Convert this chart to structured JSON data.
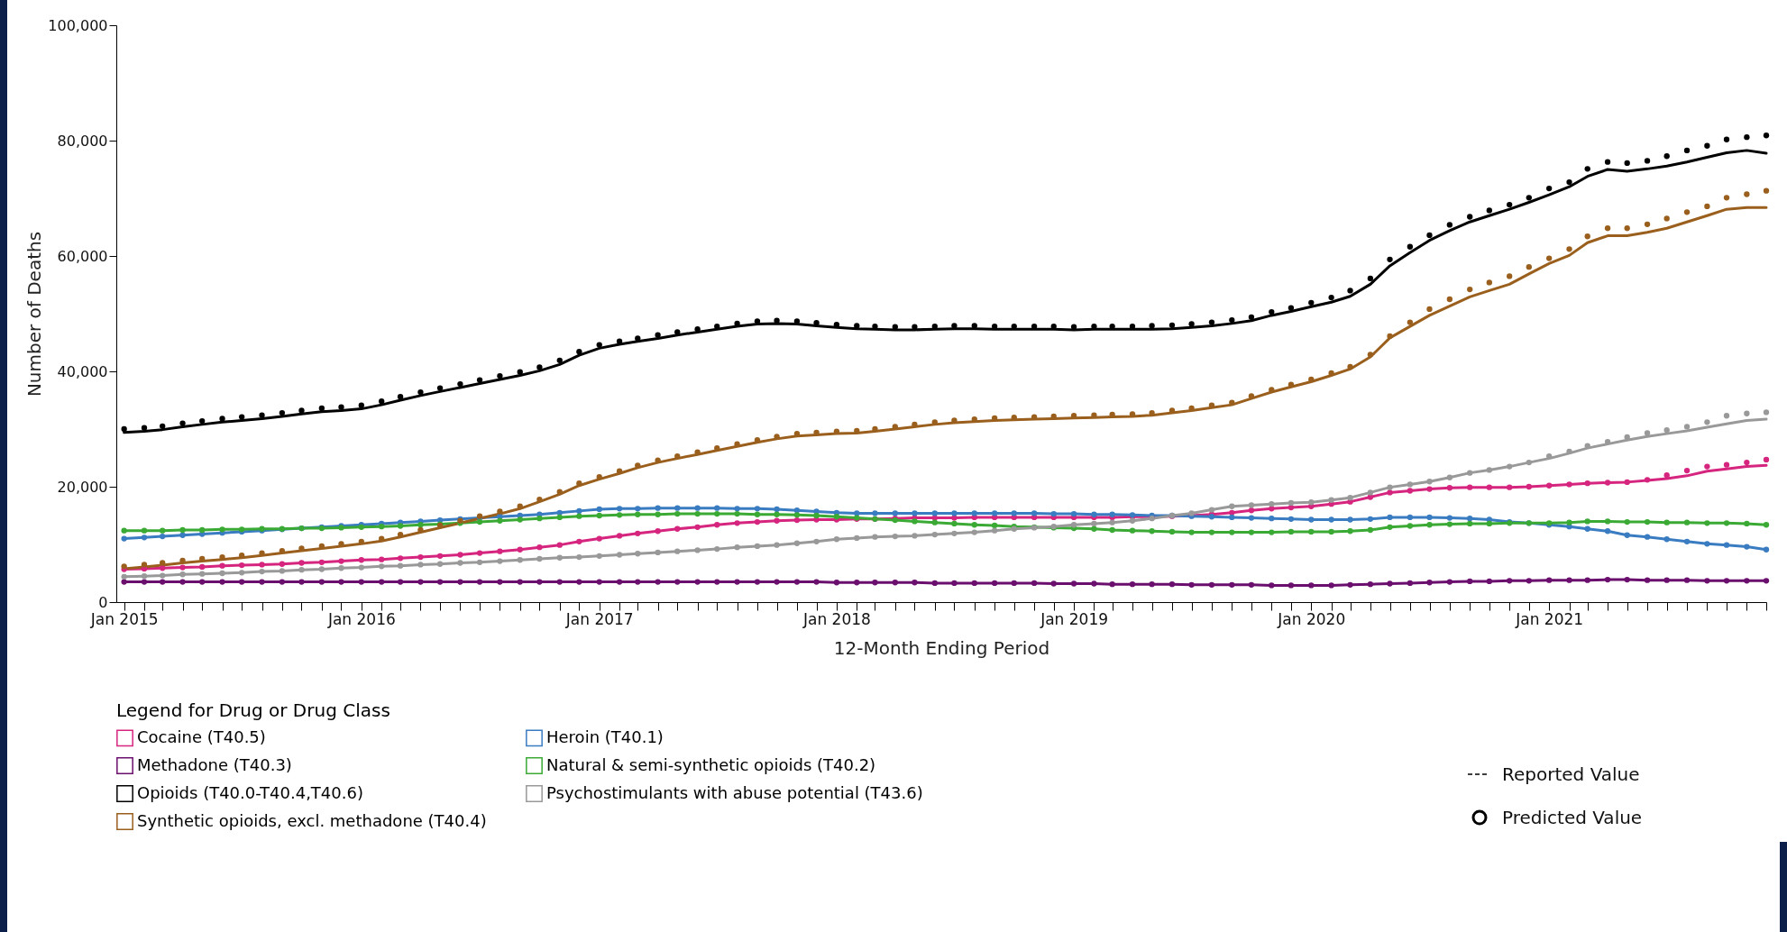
{
  "chart_data": {
    "type": "line",
    "line_style": "solid",
    "xlabel": "12-Month Ending Period",
    "ylabel": "Number of Deaths",
    "legend_title": "Legend for Drug or Drug Class",
    "legend": "bottom",
    "annotations": [
      "Reported Value",
      "Predicted Value"
    ],
    "x": [
      "2015-01",
      "2015-02",
      "2015-03",
      "2015-04",
      "2015-05",
      "2015-06",
      "2015-07",
      "2015-08",
      "2015-09",
      "2015-10",
      "2015-11",
      "2015-12",
      "2016-01",
      "2016-02",
      "2016-03",
      "2016-04",
      "2016-05",
      "2016-06",
      "2016-07",
      "2016-08",
      "2016-09",
      "2016-10",
      "2016-11",
      "2016-12",
      "2017-01",
      "2017-02",
      "2017-03",
      "2017-04",
      "2017-05",
      "2017-06",
      "2017-07",
      "2017-08",
      "2017-09",
      "2017-10",
      "2017-11",
      "2017-12",
      "2018-01",
      "2018-02",
      "2018-03",
      "2018-04",
      "2018-05",
      "2018-06",
      "2018-07",
      "2018-08",
      "2018-09",
      "2018-10",
      "2018-11",
      "2018-12",
      "2019-01",
      "2019-02",
      "2019-03",
      "2019-04",
      "2019-05",
      "2019-06",
      "2019-07",
      "2019-08",
      "2019-09",
      "2019-10",
      "2019-11",
      "2019-12",
      "2020-01",
      "2020-02",
      "2020-03",
      "2020-04",
      "2020-05",
      "2020-06",
      "2020-07",
      "2020-08",
      "2020-09",
      "2020-10",
      "2020-11",
      "2020-12",
      "2021-01",
      "2021-02",
      "2021-03",
      "2021-04",
      "2021-05",
      "2021-06",
      "2021-07",
      "2021-08",
      "2021-09",
      "2021-10",
      "2021-11",
      "2021-12"
    ],
    "xlim": [
      "2014-12-20",
      "2021-12"
    ],
    "xticks": [
      {
        "value": "2015-01",
        "label": "Jan 2015"
      },
      {
        "value": "2015-02",
        "label": null
      },
      {
        "value": "2015-03",
        "label": null
      },
      {
        "value": "2015-04",
        "label": null
      },
      {
        "value": "2015-05",
        "label": null
      },
      {
        "value": "2015-06",
        "label": null
      },
      {
        "value": "2015-07",
        "label": null
      },
      {
        "value": "2015-08",
        "label": null
      },
      {
        "value": "2015-09",
        "label": null
      },
      {
        "value": "2015-10",
        "label": null
      },
      {
        "value": "2015-11",
        "label": null
      },
      {
        "value": "2015-12",
        "label": null
      },
      {
        "value": "2016-01",
        "label": "Jan 2016"
      },
      {
        "value": "2016-02",
        "label": null
      },
      {
        "value": "2016-03",
        "label": null
      },
      {
        "value": "2016-04",
        "label": null
      },
      {
        "value": "2016-05",
        "label": null
      },
      {
        "value": "2016-06",
        "label": null
      },
      {
        "value": "2016-07",
        "label": null
      },
      {
        "value": "2016-08",
        "label": null
      },
      {
        "value": "2016-09",
        "label": null
      },
      {
        "value": "2016-10",
        "label": null
      },
      {
        "value": "2016-11",
        "label": null
      },
      {
        "value": "2016-12",
        "label": null
      },
      {
        "value": "2017-01",
        "label": "Jan 2017"
      },
      {
        "value": "2017-02",
        "label": null
      },
      {
        "value": "2017-03",
        "label": null
      },
      {
        "value": "2017-04",
        "label": null
      },
      {
        "value": "2017-05",
        "label": null
      },
      {
        "value": "2017-06",
        "label": null
      },
      {
        "value": "2017-07",
        "label": null
      },
      {
        "value": "2017-08",
        "label": null
      },
      {
        "value": "2017-09",
        "label": null
      },
      {
        "value": "2017-10",
        "label": null
      },
      {
        "value": "2017-11",
        "label": null
      },
      {
        "value": "2017-12",
        "label": null
      },
      {
        "value": "2018-01",
        "label": "Jan 2018"
      },
      {
        "value": "2018-02",
        "label": null
      },
      {
        "value": "2018-03",
        "label": null
      },
      {
        "value": "2018-04",
        "label": null
      },
      {
        "value": "2018-05",
        "label": null
      },
      {
        "value": "2018-06",
        "label": null
      },
      {
        "value": "2018-07",
        "label": null
      },
      {
        "value": "2018-08",
        "label": null
      },
      {
        "value": "2018-09",
        "label": null
      },
      {
        "value": "2018-10",
        "label": null
      },
      {
        "value": "2018-11",
        "label": null
      },
      {
        "value": "2018-12",
        "label": null
      },
      {
        "value": "2019-01",
        "label": "Jan 2019"
      },
      {
        "value": "2019-02",
        "label": null
      },
      {
        "value": "2019-03",
        "label": null
      },
      {
        "value": "2019-04",
        "label": null
      },
      {
        "value": "2019-05",
        "label": null
      },
      {
        "value": "2019-06",
        "label": null
      },
      {
        "value": "2019-07",
        "label": null
      },
      {
        "value": "2019-08",
        "label": null
      },
      {
        "value": "2019-09",
        "label": null
      },
      {
        "value": "2019-10",
        "label": null
      },
      {
        "value": "2019-11",
        "label": null
      },
      {
        "value": "2019-12",
        "label": null
      },
      {
        "value": "2020-01",
        "label": "Jan 2020"
      },
      {
        "value": "2020-02",
        "label": null
      },
      {
        "value": "2020-03",
        "label": null
      },
      {
        "value": "2020-04",
        "label": null
      },
      {
        "value": "2020-05",
        "label": null
      },
      {
        "value": "2020-06",
        "label": null
      },
      {
        "value": "2020-07",
        "label": null
      },
      {
        "value": "2020-08",
        "label": null
      },
      {
        "value": "2020-09",
        "label": null
      },
      {
        "value": "2020-10",
        "label": null
      },
      {
        "value": "2020-11",
        "label": null
      },
      {
        "value": "2020-12",
        "label": null
      },
      {
        "value": "2021-01",
        "label": "Jan 2021"
      },
      {
        "value": "2021-02",
        "label": null
      },
      {
        "value": "2021-03",
        "label": null
      },
      {
        "value": "2021-04",
        "label": null
      },
      {
        "value": "2021-05",
        "label": null
      },
      {
        "value": "2021-06",
        "label": null
      },
      {
        "value": "2021-07",
        "label": null
      },
      {
        "value": "2021-08",
        "label": null
      },
      {
        "value": "2021-09",
        "label": null
      },
      {
        "value": "2021-10",
        "label": null
      },
      {
        "value": "2021-11",
        "label": null
      },
      {
        "value": "2021-12",
        "label": null
      }
    ],
    "ylim": [
      0,
      100000
    ],
    "yticks": [
      0,
      {
        "value": 20000,
        "label": "20,000"
      },
      {
        "value": 40000,
        "label": "40,000"
      },
      {
        "value": 60000,
        "label": "60,000"
      },
      {
        "value": 80000,
        "label": "80,000"
      },
      {
        "value": 100000,
        "label": "100,000"
      }
    ],
    "series": [
      {
        "name": "Cocaine (T40.5)",
        "color": "#d6257e",
        "values": [
          5700,
          5800,
          5900,
          6000,
          6100,
          6300,
          6400,
          6500,
          6600,
          6800,
          6900,
          7100,
          7300,
          7400,
          7600,
          7800,
          8000,
          8200,
          8500,
          8800,
          9100,
          9500,
          9900,
          10500,
          11000,
          11500,
          11900,
          12300,
          12700,
          13000,
          13400,
          13700,
          13900,
          14100,
          14200,
          14300,
          14300,
          14400,
          14400,
          14500,
          14600,
          14600,
          14600,
          14700,
          14700,
          14700,
          14700,
          14700,
          14700,
          14700,
          14700,
          14800,
          14800,
          14900,
          15000,
          15200,
          15500,
          15900,
          16200,
          16400,
          16600,
          17000,
          17400,
          18200,
          19000,
          19300,
          19600,
          19800,
          19900,
          19900,
          19900,
          20000,
          20200,
          20400,
          20600,
          20700,
          20800,
          21100,
          21400,
          21900,
          22700,
          23100,
          23500,
          23700
        ]
      },
      {
        "name": "Heroin (T40.1)",
        "color": "#3a7cc1",
        "values": [
          11000,
          11200,
          11400,
          11600,
          11800,
          12000,
          12200,
          12400,
          12600,
          12800,
          13000,
          13200,
          13400,
          13600,
          13800,
          14000,
          14200,
          14400,
          14600,
          14800,
          15000,
          15200,
          15500,
          15800,
          16100,
          16200,
          16200,
          16300,
          16300,
          16300,
          16300,
          16200,
          16200,
          16100,
          15900,
          15700,
          15500,
          15400,
          15400,
          15400,
          15400,
          15400,
          15400,
          15400,
          15400,
          15400,
          15400,
          15300,
          15300,
          15200,
          15200,
          15100,
          15000,
          15000,
          14900,
          14800,
          14700,
          14600,
          14500,
          14400,
          14300,
          14300,
          14300,
          14400,
          14700,
          14700,
          14700,
          14600,
          14500,
          14300,
          13900,
          13700,
          13400,
          13100,
          12700,
          12300,
          11600,
          11300,
          10900,
          10500,
          10100,
          9900,
          9600,
          9100
        ]
      },
      {
        "name": "Methadone (T40.3)",
        "color": "#6b0f6e",
        "values": [
          3500,
          3500,
          3500,
          3500,
          3500,
          3500,
          3500,
          3500,
          3500,
          3500,
          3500,
          3500,
          3500,
          3500,
          3500,
          3500,
          3500,
          3500,
          3500,
          3500,
          3500,
          3500,
          3500,
          3500,
          3500,
          3500,
          3500,
          3500,
          3500,
          3500,
          3500,
          3500,
          3500,
          3500,
          3500,
          3500,
          3400,
          3400,
          3400,
          3400,
          3400,
          3300,
          3300,
          3300,
          3300,
          3300,
          3300,
          3200,
          3200,
          3200,
          3100,
          3100,
          3100,
          3100,
          3000,
          3000,
          3000,
          3000,
          2900,
          2900,
          2900,
          2900,
          3000,
          3100,
          3200,
          3300,
          3400,
          3500,
          3600,
          3600,
          3700,
          3700,
          3800,
          3800,
          3800,
          3900,
          3900,
          3800,
          3800,
          3800,
          3700,
          3700,
          3700,
          3700
        ]
      },
      {
        "name": "Natural & semi-synthetic opioids (T40.2)",
        "color": "#3aaa35",
        "values": [
          12400,
          12400,
          12400,
          12500,
          12500,
          12600,
          12600,
          12700,
          12700,
          12800,
          12800,
          12900,
          13000,
          13100,
          13200,
          13400,
          13500,
          13700,
          13900,
          14100,
          14300,
          14500,
          14700,
          14900,
          15000,
          15100,
          15200,
          15200,
          15300,
          15300,
          15300,
          15300,
          15200,
          15200,
          15100,
          15000,
          14800,
          14600,
          14400,
          14200,
          14000,
          13800,
          13600,
          13400,
          13300,
          13100,
          13000,
          12900,
          12800,
          12700,
          12500,
          12400,
          12300,
          12200,
          12100,
          12100,
          12100,
          12100,
          12100,
          12200,
          12200,
          12200,
          12300,
          12500,
          13000,
          13200,
          13400,
          13500,
          13600,
          13600,
          13700,
          13700,
          13700,
          13800,
          14000,
          14000,
          13900,
          13900,
          13800,
          13800,
          13700,
          13700,
          13600,
          13400
        ]
      },
      {
        "name": "Opioids (T40.0-T40.4,T40.6)",
        "color": "#000000",
        "values": [
          29400,
          29600,
          29900,
          30400,
          30800,
          31200,
          31500,
          31800,
          32200,
          32600,
          33000,
          33200,
          33500,
          34200,
          35000,
          35800,
          36500,
          37200,
          37900,
          38600,
          39300,
          40100,
          41200,
          42800,
          44000,
          44700,
          45200,
          45700,
          46300,
          46800,
          47300,
          47800,
          48200,
          48300,
          48200,
          47900,
          47600,
          47400,
          47300,
          47200,
          47200,
          47300,
          47400,
          47400,
          47300,
          47300,
          47300,
          47300,
          47200,
          47300,
          47300,
          47300,
          47300,
          47400,
          47600,
          47900,
          48300,
          48800,
          49700,
          50400,
          51200,
          52000,
          53000,
          55100,
          58300,
          60600,
          62700,
          64400,
          65900,
          67000,
          68100,
          69300,
          70600,
          72000,
          73800,
          75000,
          74700,
          75100,
          75600,
          76300,
          77100,
          77900,
          78300,
          77800
        ]
      },
      {
        "name": "Psychostimulants with abuse potential (T43.6)",
        "color": "#999999",
        "values": [
          4400,
          4500,
          4600,
          4800,
          4900,
          5000,
          5100,
          5300,
          5400,
          5600,
          5700,
          5900,
          6000,
          6200,
          6300,
          6500,
          6600,
          6800,
          6900,
          7100,
          7300,
          7500,
          7700,
          7800,
          8000,
          8200,
          8400,
          8600,
          8800,
          9000,
          9200,
          9500,
          9700,
          9900,
          10200,
          10500,
          10900,
          11100,
          11300,
          11400,
          11500,
          11700,
          11900,
          12100,
          12400,
          12700,
          12900,
          13100,
          13400,
          13600,
          13800,
          14100,
          14500,
          15000,
          15400,
          16000,
          16600,
          16800,
          17000,
          17200,
          17300,
          17700,
          18100,
          19000,
          19900,
          20400,
          20900,
          21600,
          22400,
          22900,
          23500,
          24200,
          24900,
          25800,
          26700,
          27400,
          28100,
          28700,
          29200,
          29700,
          30300,
          30900,
          31500,
          31700
        ]
      },
      {
        "name": "Synthetic opioids, excl. methadone (T40.4)",
        "color": "#9a5f1d",
        "values": [
          5800,
          6100,
          6400,
          6800,
          7100,
          7400,
          7700,
          8100,
          8500,
          8900,
          9300,
          9700,
          10100,
          10600,
          11300,
          12100,
          12900,
          13700,
          14500,
          15300,
          16200,
          17400,
          18700,
          20200,
          21300,
          22300,
          23300,
          24200,
          24900,
          25600,
          26300,
          27000,
          27700,
          28300,
          28800,
          29000,
          29200,
          29300,
          29600,
          30000,
          30400,
          30800,
          31100,
          31300,
          31500,
          31600,
          31700,
          31800,
          31900,
          32000,
          32100,
          32200,
          32400,
          32800,
          33200,
          33700,
          34200,
          35300,
          36400,
          37300,
          38200,
          39300,
          40400,
          42500,
          45800,
          47800,
          49700,
          51300,
          52900,
          54000,
          55100,
          56900,
          58700,
          60100,
          62300,
          63500,
          63500,
          64100,
          64800,
          65900,
          67000,
          68100,
          68400,
          68400
        ]
      },
      {
        "type": "scatter",
        "marker": "circle",
        "color": "#d6257e",
        "values": [
          5700,
          5800,
          5900,
          6000,
          6100,
          6300,
          6400,
          6500,
          6600,
          6800,
          6900,
          7100,
          7300,
          7400,
          7600,
          7800,
          8000,
          8200,
          8500,
          8800,
          9100,
          9500,
          9900,
          10500,
          11000,
          11500,
          11900,
          12300,
          12700,
          13000,
          13400,
          13700,
          13900,
          14100,
          14200,
          14300,
          14300,
          14400,
          14400,
          14500,
          14600,
          14600,
          14600,
          14700,
          14700,
          14700,
          14700,
          14700,
          14700,
          14700,
          14700,
          14800,
          14800,
          14900,
          15000,
          15200,
          15500,
          15900,
          16200,
          16400,
          16600,
          17000,
          17400,
          18200,
          19000,
          19300,
          19600,
          19800,
          19900,
          19900,
          19900,
          20000,
          20200,
          20400,
          20600,
          20700,
          20800,
          21200,
          22000,
          22800,
          23500,
          23800,
          24200,
          24700
        ]
      },
      {
        "type": "scatter",
        "marker": "circle",
        "color": "#3a7cc1",
        "values": [
          11000,
          11200,
          11400,
          11600,
          11800,
          12000,
          12200,
          12400,
          12600,
          12800,
          13000,
          13200,
          13400,
          13600,
          13800,
          14000,
          14200,
          14400,
          14600,
          14800,
          15000,
          15200,
          15500,
          15800,
          16100,
          16200,
          16200,
          16300,
          16300,
          16300,
          16300,
          16200,
          16200,
          16100,
          15900,
          15700,
          15500,
          15400,
          15400,
          15400,
          15400,
          15400,
          15400,
          15400,
          15400,
          15400,
          15400,
          15300,
          15300,
          15200,
          15200,
          15100,
          15000,
          15000,
          14900,
          14800,
          14700,
          14600,
          14500,
          14400,
          14300,
          14300,
          14300,
          14400,
          14700,
          14700,
          14700,
          14600,
          14500,
          14300,
          13900,
          13700,
          13400,
          13100,
          12700,
          12300,
          11600,
          11300,
          10900,
          10500,
          10100,
          9900,
          9600,
          9100
        ]
      },
      {
        "type": "scatter",
        "marker": "circle",
        "color": "#6b0f6e",
        "values": [
          3500,
          3500,
          3500,
          3500,
          3500,
          3500,
          3500,
          3500,
          3500,
          3500,
          3500,
          3500,
          3500,
          3500,
          3500,
          3500,
          3500,
          3500,
          3500,
          3500,
          3500,
          3500,
          3500,
          3500,
          3500,
          3500,
          3500,
          3500,
          3500,
          3500,
          3500,
          3500,
          3500,
          3500,
          3500,
          3500,
          3400,
          3400,
          3400,
          3400,
          3400,
          3300,
          3300,
          3300,
          3300,
          3300,
          3300,
          3200,
          3200,
          3200,
          3100,
          3100,
          3100,
          3100,
          3000,
          3000,
          3000,
          3000,
          2900,
          2900,
          2900,
          2900,
          3000,
          3100,
          3200,
          3300,
          3400,
          3500,
          3600,
          3600,
          3700,
          3700,
          3800,
          3800,
          3800,
          3900,
          3900,
          3800,
          3800,
          3800,
          3700,
          3700,
          3700,
          3700
        ]
      },
      {
        "type": "scatter",
        "marker": "circle",
        "color": "#3aaa35",
        "values": [
          12400,
          12400,
          12400,
          12500,
          12500,
          12600,
          12600,
          12700,
          12700,
          12800,
          12800,
          12900,
          13000,
          13100,
          13200,
          13400,
          13500,
          13700,
          13900,
          14100,
          14300,
          14500,
          14700,
          14900,
          15000,
          15100,
          15200,
          15200,
          15300,
          15300,
          15300,
          15300,
          15200,
          15200,
          15100,
          15000,
          14800,
          14600,
          14400,
          14200,
          14000,
          13800,
          13600,
          13400,
          13300,
          13100,
          13000,
          12900,
          12800,
          12700,
          12500,
          12400,
          12300,
          12200,
          12100,
          12100,
          12100,
          12100,
          12100,
          12200,
          12200,
          12200,
          12300,
          12500,
          13000,
          13200,
          13400,
          13500,
          13600,
          13600,
          13700,
          13700,
          13700,
          13800,
          14000,
          14000,
          13900,
          13900,
          13800,
          13800,
          13700,
          13700,
          13600,
          13400
        ]
      },
      {
        "type": "scatter",
        "marker": "circle",
        "color": "#000000",
        "values": [
          30000,
          30200,
          30500,
          31000,
          31400,
          31800,
          32100,
          32400,
          32800,
          33200,
          33600,
          33800,
          34100,
          34800,
          35600,
          36400,
          37100,
          37800,
          38500,
          39200,
          39900,
          40700,
          41900,
          43400,
          44600,
          45200,
          45700,
          46300,
          46800,
          47300,
          47800,
          48300,
          48700,
          48800,
          48700,
          48400,
          48100,
          47900,
          47800,
          47700,
          47700,
          47800,
          47900,
          47900,
          47800,
          47800,
          47800,
          47800,
          47700,
          47800,
          47800,
          47800,
          47900,
          48000,
          48200,
          48500,
          48900,
          49400,
          50300,
          51000,
          51900,
          52800,
          54000,
          56100,
          59400,
          61600,
          63600,
          65400,
          66800,
          67900,
          68900,
          70100,
          71700,
          72800,
          75100,
          76300,
          76100,
          76500,
          77300,
          78300,
          79100,
          80200,
          80600,
          80900
        ]
      },
      {
        "type": "scatter",
        "marker": "circle",
        "color": "#999999",
        "values": [
          4400,
          4500,
          4600,
          4800,
          4900,
          5000,
          5100,
          5300,
          5400,
          5600,
          5700,
          5900,
          6000,
          6200,
          6300,
          6500,
          6600,
          6800,
          6900,
          7100,
          7300,
          7500,
          7700,
          7800,
          8000,
          8200,
          8400,
          8600,
          8800,
          9000,
          9200,
          9500,
          9700,
          9900,
          10200,
          10500,
          10900,
          11100,
          11300,
          11400,
          11500,
          11700,
          11900,
          12100,
          12400,
          12700,
          12900,
          13100,
          13400,
          13600,
          13800,
          14100,
          14500,
          15000,
          15400,
          16000,
          16600,
          16800,
          17000,
          17200,
          17300,
          17700,
          18100,
          19000,
          19900,
          20400,
          20900,
          21600,
          22400,
          22900,
          23500,
          24200,
          25300,
          26100,
          27100,
          27800,
          28600,
          29300,
          29800,
          30400,
          31200,
          32300,
          32700,
          32900
        ]
      },
      {
        "type": "scatter",
        "marker": "circle",
        "color": "#9a5f1d",
        "values": [
          6200,
          6500,
          6800,
          7200,
          7500,
          7800,
          8100,
          8500,
          8900,
          9300,
          9700,
          10100,
          10500,
          11000,
          11700,
          12500,
          13300,
          14100,
          14900,
          15700,
          16600,
          17800,
          19100,
          20600,
          21700,
          22700,
          23700,
          24600,
          25300,
          26000,
          26700,
          27400,
          28100,
          28700,
          29200,
          29400,
          29600,
          29700,
          30000,
          30400,
          30800,
          31200,
          31500,
          31700,
          31900,
          32000,
          32100,
          32200,
          32300,
          32400,
          32500,
          32600,
          32800,
          33200,
          33600,
          34100,
          34600,
          35700,
          36800,
          37700,
          38600,
          39700,
          40800,
          42900,
          46100,
          48500,
          50800,
          52500,
          54200,
          55400,
          56500,
          58100,
          59600,
          61200,
          63400,
          64800,
          64800,
          65500,
          66500,
          67600,
          68600,
          70100,
          70700,
          71300
        ]
      }
    ]
  }
}
